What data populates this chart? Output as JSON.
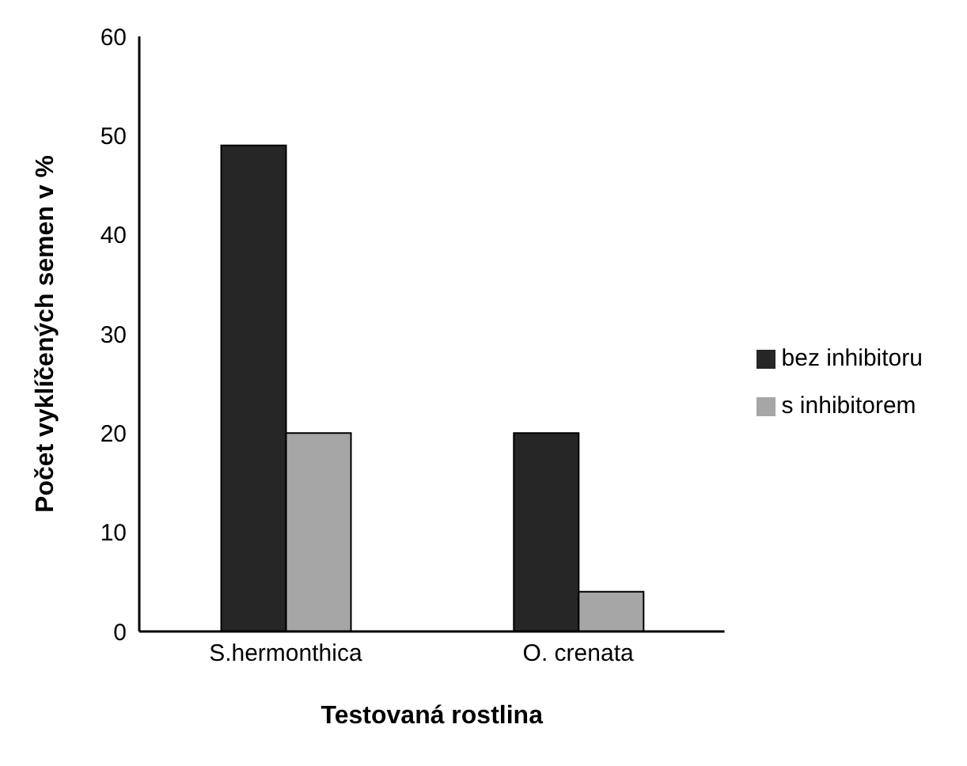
{
  "chart_data": {
    "type": "bar",
    "xlabel": "Testovaná rostlina",
    "ylabel": "Počet vyklíčených semen v %",
    "categories": [
      "S.hermonthica",
      "O. crenata"
    ],
    "series": [
      {
        "name": "bez inhibitoru",
        "color": "#262626",
        "values": [
          49,
          20
        ]
      },
      {
        "name": "s inhibitorem",
        "color": "#a6a6a6",
        "values": [
          20,
          4
        ]
      }
    ],
    "ylim": [
      0,
      60
    ],
    "yticks": [
      0,
      10,
      20,
      30,
      40,
      50,
      60
    ],
    "grid": false,
    "legend": "right"
  }
}
